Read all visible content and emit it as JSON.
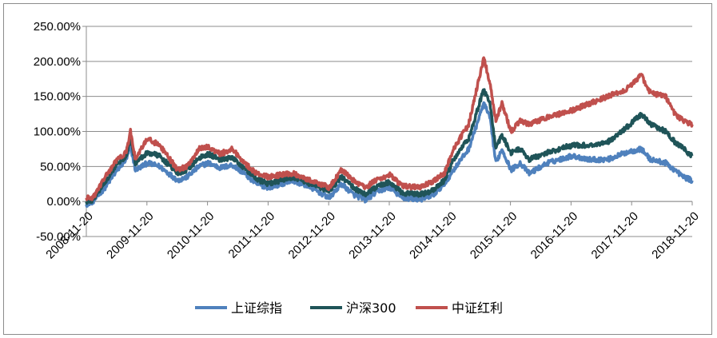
{
  "chart_data": {
    "type": "line",
    "title": "",
    "xlabel": "",
    "ylabel": "",
    "y_tick_labels": [
      "-50.00%",
      "0.00%",
      "50.00%",
      "100.00%",
      "150.00%",
      "200.00%",
      "250.00%"
    ],
    "ylim": [
      -50,
      250
    ],
    "x_tick_labels": [
      "2008-11-20",
      "2009-11-20",
      "2010-11-20",
      "2011-11-20",
      "2012-11-20",
      "2013-11-20",
      "2014-11-20",
      "2015-11-20",
      "2016-11-20",
      "2017-11-20",
      "2018-11-20"
    ],
    "xlim": [
      2008.89,
      2018.89
    ],
    "grid": "horizontal",
    "legend_position": "bottom",
    "series": [
      {
        "name": "上证综指",
        "color": "#4f81bd",
        "x": [
          2008.89,
          2009.0,
          2009.2,
          2009.4,
          2009.55,
          2009.62,
          2009.7,
          2009.9,
          2010.1,
          2010.4,
          2010.55,
          2010.75,
          2010.9,
          2011.1,
          2011.3,
          2011.5,
          2011.7,
          2011.9,
          2012.1,
          2012.3,
          2012.6,
          2012.9,
          2013.1,
          2013.3,
          2013.5,
          2013.7,
          2013.9,
          2014.1,
          2014.4,
          2014.6,
          2014.8,
          2014.95,
          2015.2,
          2015.45,
          2015.55,
          2015.65,
          2015.75,
          2015.9,
          2016.05,
          2016.2,
          2016.5,
          2016.9,
          2017.2,
          2017.5,
          2017.8,
          2018.05,
          2018.2,
          2018.45,
          2018.6,
          2018.75,
          2018.89
        ],
        "values": [
          -4,
          0,
          20,
          45,
          60,
          78,
          45,
          55,
          50,
          30,
          35,
          50,
          55,
          48,
          52,
          40,
          25,
          20,
          25,
          30,
          20,
          5,
          25,
          10,
          2,
          15,
          20,
          5,
          3,
          8,
          25,
          45,
          75,
          140,
          120,
          55,
          75,
          45,
          55,
          40,
          55,
          65,
          60,
          60,
          70,
          75,
          60,
          55,
          45,
          35,
          30
        ]
      },
      {
        "name": "沪深300",
        "color": "#1f5458",
        "x": [
          2008.89,
          2009.0,
          2009.2,
          2009.4,
          2009.55,
          2009.62,
          2009.7,
          2009.9,
          2010.1,
          2010.4,
          2010.55,
          2010.75,
          2010.9,
          2011.1,
          2011.3,
          2011.5,
          2011.7,
          2011.9,
          2012.1,
          2012.3,
          2012.6,
          2012.9,
          2013.1,
          2013.3,
          2013.5,
          2013.7,
          2013.9,
          2014.1,
          2014.4,
          2014.6,
          2014.8,
          2014.95,
          2015.2,
          2015.45,
          2015.55,
          2015.65,
          2015.75,
          2015.9,
          2016.05,
          2016.2,
          2016.5,
          2016.9,
          2017.2,
          2017.5,
          2017.8,
          2018.05,
          2018.2,
          2018.45,
          2018.6,
          2018.75,
          2018.89
        ],
        "values": [
          0,
          2,
          28,
          55,
          65,
          90,
          55,
          70,
          65,
          40,
          45,
          62,
          68,
          60,
          62,
          48,
          32,
          25,
          30,
          35,
          25,
          15,
          35,
          20,
          10,
          22,
          28,
          12,
          10,
          15,
          30,
          60,
          90,
          160,
          140,
          75,
          95,
          70,
          75,
          60,
          70,
          80,
          80,
          85,
          105,
          125,
          110,
          100,
          85,
          75,
          65
        ]
      },
      {
        "name": "中证红利",
        "color": "#c0504d",
        "x": [
          2008.89,
          2009.0,
          2009.2,
          2009.4,
          2009.55,
          2009.62,
          2009.7,
          2009.9,
          2010.1,
          2010.4,
          2010.55,
          2010.75,
          2010.9,
          2011.1,
          2011.3,
          2011.5,
          2011.7,
          2011.9,
          2012.1,
          2012.3,
          2012.6,
          2012.9,
          2013.1,
          2013.3,
          2013.5,
          2013.7,
          2013.9,
          2014.1,
          2014.4,
          2014.6,
          2014.8,
          2014.95,
          2015.2,
          2015.45,
          2015.55,
          2015.65,
          2015.75,
          2015.9,
          2016.05,
          2016.2,
          2016.5,
          2016.9,
          2017.2,
          2017.5,
          2017.8,
          2018.05,
          2018.2,
          2018.45,
          2018.6,
          2018.75,
          2018.89
        ],
        "values": [
          5,
          5,
          35,
          60,
          70,
          100,
          60,
          90,
          80,
          45,
          50,
          75,
          78,
          68,
          75,
          55,
          40,
          35,
          38,
          40,
          30,
          20,
          45,
          30,
          20,
          32,
          38,
          22,
          20,
          28,
          40,
          75,
          110,
          205,
          170,
          115,
          140,
          100,
          115,
          110,
          120,
          130,
          140,
          150,
          160,
          180,
          155,
          150,
          125,
          115,
          110
        ]
      }
    ]
  }
}
